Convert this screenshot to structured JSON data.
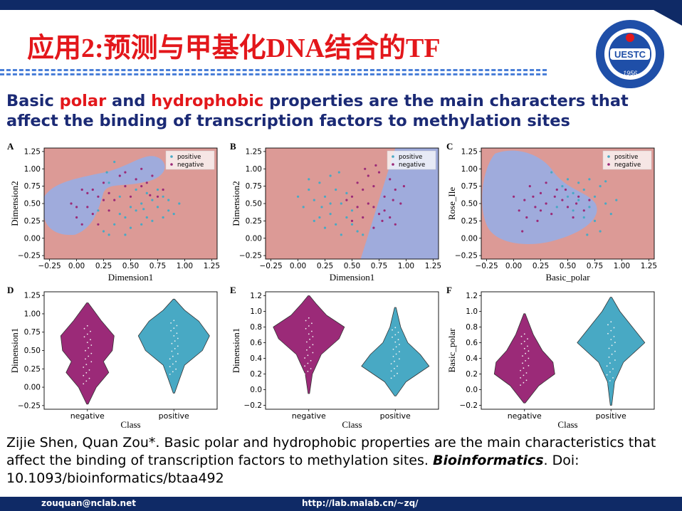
{
  "slide": {
    "title": "应用2:预测与甲基化DNA结合的TF",
    "headline": {
      "p1": "Basic ",
      "p2": "polar",
      "p3": " and ",
      "p4": "hydrophobic",
      "p5": " properties are the main characters that affect the binding of transcription factors to methylation sites"
    },
    "citation": {
      "authors": "Zijie Shen, Quan Zou*. Basic polar and hydrophobic properties are the main characteristics that affect the binding of transcription factors to methylation sites. ",
      "journal": "Bioinformatics",
      "doi": ". Doi: 10.1093/bioinformatics/btaa492"
    },
    "footer": {
      "email": "zouquan@nclab.net",
      "url": "http://lab.malab.cn/~zq/"
    },
    "logo": {
      "text": "UESTC",
      "year": "1956"
    },
    "colors": {
      "title": "#e3171b",
      "headline": "#1b2a75",
      "bar": "#0f2a66",
      "negative": "#9b2a78",
      "positive": "#48a9c4",
      "region_red": "#dc9a96",
      "region_blue": "#9fabdc"
    }
  },
  "chart_data": [
    {
      "panel": "A",
      "type": "scatter",
      "xlabel": "Dimension1",
      "ylabel": "Dimension2",
      "xticks": [
        "−0.25",
        "0.00",
        "0.25",
        "0.50",
        "0.75",
        "1.00",
        "1.25"
      ],
      "yticks": [
        "−0.25",
        "0.00",
        "0.25",
        "0.50",
        "0.75",
        "1.00",
        "1.25"
      ],
      "xlim": [
        -0.3,
        1.3
      ],
      "ylim": [
        -0.3,
        1.3
      ],
      "legend": [
        "positive",
        "negative"
      ],
      "legend_position": "top-right",
      "series": [
        {
          "name": "positive",
          "points": [
            [
              0.2,
              0.4
            ],
            [
              0.25,
              0.1
            ],
            [
              0.3,
              0.05
            ],
            [
              0.35,
              0.2
            ],
            [
              0.4,
              0.35
            ],
            [
              0.45,
              0.3
            ],
            [
              0.5,
              0.45
            ],
            [
              0.55,
              0.4
            ],
            [
              0.6,
              0.5
            ],
            [
              0.65,
              0.3
            ],
            [
              0.7,
              0.55
            ],
            [
              0.75,
              0.45
            ],
            [
              0.8,
              0.6
            ],
            [
              0.85,
              0.4
            ],
            [
              0.9,
              0.35
            ],
            [
              0.6,
              0.2
            ],
            [
              0.5,
              0.15
            ],
            [
              0.7,
              0.25
            ],
            [
              0.8,
              0.3
            ],
            [
              0.95,
              0.5
            ],
            [
              0.4,
              0.6
            ],
            [
              0.3,
              0.8
            ],
            [
              0.35,
              1.1
            ],
            [
              0.28,
              0.95
            ],
            [
              0.55,
              0.7
            ],
            [
              0.65,
              0.65
            ],
            [
              0.75,
              0.7
            ],
            [
              0.85,
              0.55
            ],
            [
              0.45,
              0.05
            ],
            [
              0.62,
              0.42
            ]
          ]
        },
        {
          "name": "negative",
          "points": [
            [
              -0.05,
              0.5
            ],
            [
              0.0,
              0.3
            ],
            [
              0.05,
              0.2
            ],
            [
              0.1,
              0.45
            ],
            [
              0.15,
              0.7
            ],
            [
              0.2,
              0.6
            ],
            [
              0.25,
              0.8
            ],
            [
              0.3,
              0.65
            ],
            [
              0.35,
              0.55
            ],
            [
              0.4,
              0.9
            ],
            [
              0.45,
              0.75
            ],
            [
              0.5,
              0.6
            ],
            [
              0.55,
              0.85
            ],
            [
              0.6,
              1.0
            ],
            [
              0.65,
              0.8
            ],
            [
              0.7,
              0.9
            ],
            [
              0.75,
              0.6
            ],
            [
              0.8,
              0.7
            ],
            [
              0.15,
              0.35
            ],
            [
              0.2,
              0.2
            ],
            [
              0.1,
              0.65
            ],
            [
              0.05,
              0.7
            ],
            [
              0.0,
              0.45
            ],
            [
              0.3,
              0.4
            ],
            [
              0.25,
              0.55
            ],
            [
              0.6,
              0.75
            ],
            [
              0.68,
              0.62
            ],
            [
              0.45,
              0.95
            ]
          ]
        }
      ]
    },
    {
      "panel": "B",
      "type": "scatter",
      "xlabel": "Dimension1",
      "ylabel": "Dimension2",
      "xticks": [
        "−0.25",
        "0.00",
        "0.25",
        "0.50",
        "0.75",
        "1.00",
        "1.25"
      ],
      "yticks": [
        "−0.25",
        "0.00",
        "0.25",
        "0.50",
        "0.75",
        "1.00",
        "1.25"
      ],
      "xlim": [
        -0.3,
        1.3
      ],
      "ylim": [
        -0.3,
        1.3
      ],
      "legend": [
        "positive",
        "negative"
      ],
      "legend_position": "top-right",
      "series": [
        {
          "name": "positive",
          "points": [
            [
              0.0,
              0.6
            ],
            [
              0.05,
              0.45
            ],
            [
              0.1,
              0.7
            ],
            [
              0.15,
              0.55
            ],
            [
              0.2,
              0.8
            ],
            [
              0.25,
              0.6
            ],
            [
              0.3,
              0.9
            ],
            [
              0.35,
              0.7
            ],
            [
              0.4,
              0.5
            ],
            [
              0.45,
              0.3
            ],
            [
              0.5,
              0.2
            ],
            [
              0.55,
              0.1
            ],
            [
              0.6,
              0.05
            ],
            [
              0.3,
              0.35
            ],
            [
              0.2,
              0.3
            ],
            [
              0.25,
              0.15
            ],
            [
              0.35,
              0.2
            ],
            [
              0.4,
              0.05
            ],
            [
              0.15,
              0.25
            ],
            [
              0.5,
              0.4
            ],
            [
              0.1,
              0.85
            ],
            [
              0.38,
              0.95
            ],
            [
              0.45,
              0.65
            ],
            [
              0.3,
              0.5
            ],
            [
              0.22,
              0.45
            ]
          ]
        },
        {
          "name": "negative",
          "points": [
            [
              0.5,
              0.6
            ],
            [
              0.55,
              0.8
            ],
            [
              0.6,
              0.7
            ],
            [
              0.65,
              0.9
            ],
            [
              0.7,
              0.75
            ],
            [
              0.75,
              0.95
            ],
            [
              0.8,
              0.6
            ],
            [
              0.85,
              0.85
            ],
            [
              0.9,
              0.7
            ],
            [
              0.95,
              0.5
            ],
            [
              0.7,
              0.45
            ],
            [
              0.75,
              0.35
            ],
            [
              0.8,
              0.4
            ],
            [
              0.65,
              0.5
            ],
            [
              0.6,
              0.3
            ],
            [
              0.55,
              0.45
            ],
            [
              0.85,
              0.3
            ],
            [
              0.9,
              0.2
            ],
            [
              0.7,
              0.15
            ],
            [
              0.78,
              0.25
            ],
            [
              0.62,
              1.0
            ],
            [
              0.72,
              1.05
            ],
            [
              0.88,
              0.55
            ],
            [
              0.5,
              0.25
            ],
            [
              0.45,
              0.55
            ],
            [
              0.98,
              0.75
            ]
          ]
        }
      ]
    },
    {
      "panel": "C",
      "type": "scatter",
      "xlabel": "Basic_polar",
      "ylabel": "Rose_Ile",
      "xticks": [
        "−0.25",
        "0.00",
        "0.25",
        "0.50",
        "0.75",
        "1.00",
        "1.25"
      ],
      "yticks": [
        "−0.25",
        "0.00",
        "0.25",
        "0.50",
        "0.75",
        "1.00",
        "1.25"
      ],
      "xlim": [
        -0.3,
        1.3
      ],
      "ylim": [
        -0.3,
        1.3
      ],
      "legend": [
        "positive",
        "negative"
      ],
      "legend_position": "top-right",
      "series": [
        {
          "name": "positive",
          "points": [
            [
              0.35,
              0.95
            ],
            [
              0.45,
              0.75
            ],
            [
              0.5,
              0.85
            ],
            [
              0.55,
              0.65
            ],
            [
              0.6,
              0.8
            ],
            [
              0.65,
              0.7
            ],
            [
              0.7,
              0.85
            ],
            [
              0.75,
              0.6
            ],
            [
              0.8,
              0.75
            ],
            [
              0.85,
              0.5
            ],
            [
              0.9,
              0.35
            ],
            [
              0.7,
              0.45
            ],
            [
              0.6,
              0.55
            ],
            [
              0.55,
              0.4
            ],
            [
              0.65,
              0.3
            ],
            [
              0.75,
              0.25
            ],
            [
              0.8,
              0.1
            ],
            [
              0.68,
              0.05
            ],
            [
              0.85,
              0.82
            ],
            [
              0.5,
              0.6
            ],
            [
              0.4,
              0.45
            ],
            [
              0.95,
              0.55
            ]
          ]
        },
        {
          "name": "negative",
          "points": [
            [
              0.0,
              0.6
            ],
            [
              0.05,
              0.4
            ],
            [
              0.1,
              0.55
            ],
            [
              0.15,
              0.75
            ],
            [
              0.2,
              0.45
            ],
            [
              0.25,
              0.65
            ],
            [
              0.3,
              0.5
            ],
            [
              0.35,
              0.35
            ],
            [
              0.4,
              0.7
            ],
            [
              0.45,
              0.55
            ],
            [
              0.5,
              0.45
            ],
            [
              0.55,
              0.3
            ],
            [
              0.6,
              0.6
            ],
            [
              0.12,
              0.3
            ],
            [
              0.22,
              0.25
            ],
            [
              0.3,
              0.8
            ],
            [
              0.38,
              0.6
            ],
            [
              0.48,
              0.7
            ],
            [
              0.08,
              0.1
            ],
            [
              0.25,
              0.4
            ],
            [
              0.58,
              0.5
            ],
            [
              0.65,
              0.4
            ],
            [
              0.7,
              0.55
            ],
            [
              0.18,
              0.6
            ]
          ]
        }
      ]
    },
    {
      "panel": "D",
      "type": "violin",
      "xlabel": "Class",
      "ylabel": "Dimension1",
      "categories": [
        "negative",
        "positive"
      ],
      "yticks": [
        "−0.25",
        "0.00",
        "0.25",
        "0.50",
        "0.75",
        "1.00",
        "1.25"
      ],
      "ylim": [
        -0.3,
        1.3
      ],
      "violins": [
        {
          "category": "negative",
          "min": -0.23,
          "max": 1.15,
          "profile": [
            [
              -0.23,
              0.02
            ],
            [
              0.0,
              0.25
            ],
            [
              0.2,
              0.6
            ],
            [
              0.35,
              0.45
            ],
            [
              0.5,
              0.7
            ],
            [
              0.7,
              0.75
            ],
            [
              0.9,
              0.4
            ],
            [
              1.15,
              0.02
            ]
          ]
        },
        {
          "category": "positive",
          "min": -0.08,
          "max": 1.2,
          "profile": [
            [
              -0.08,
              0.02
            ],
            [
              0.1,
              0.15
            ],
            [
              0.3,
              0.3
            ],
            [
              0.5,
              0.8
            ],
            [
              0.7,
              1.0
            ],
            [
              0.9,
              0.7
            ],
            [
              1.05,
              0.3
            ],
            [
              1.2,
              0.02
            ]
          ]
        }
      ]
    },
    {
      "panel": "E",
      "type": "violin",
      "xlabel": "Class",
      "ylabel": "Dimension1",
      "categories": [
        "negative",
        "positive"
      ],
      "yticks": [
        "−0.2",
        "0.0",
        "0.2",
        "0.4",
        "0.6",
        "0.8",
        "1.0",
        "1.2"
      ],
      "ylim": [
        -0.25,
        1.25
      ],
      "violins": [
        {
          "category": "negative",
          "min": -0.05,
          "max": 1.2,
          "profile": [
            [
              -0.05,
              0.02
            ],
            [
              0.2,
              0.1
            ],
            [
              0.45,
              0.35
            ],
            [
              0.65,
              0.85
            ],
            [
              0.8,
              1.0
            ],
            [
              0.95,
              0.5
            ],
            [
              1.1,
              0.2
            ],
            [
              1.2,
              0.02
            ]
          ]
        },
        {
          "category": "positive",
          "min": -0.08,
          "max": 1.05,
          "profile": [
            [
              -0.08,
              0.02
            ],
            [
              0.1,
              0.3
            ],
            [
              0.3,
              0.95
            ],
            [
              0.45,
              0.7
            ],
            [
              0.6,
              0.35
            ],
            [
              0.8,
              0.15
            ],
            [
              1.05,
              0.02
            ]
          ]
        }
      ]
    },
    {
      "panel": "F",
      "type": "violin",
      "xlabel": "Class",
      "ylabel": "Basic_polar",
      "categories": [
        "negative",
        "positive"
      ],
      "yticks": [
        "−0.2",
        "0.0",
        "0.2",
        "0.4",
        "0.6",
        "0.8",
        "1.0",
        "1.2"
      ],
      "ylim": [
        -0.25,
        1.25
      ],
      "violins": [
        {
          "category": "negative",
          "min": -0.17,
          "max": 0.97,
          "profile": [
            [
              -0.17,
              0.02
            ],
            [
              0.05,
              0.4
            ],
            [
              0.2,
              0.85
            ],
            [
              0.35,
              0.8
            ],
            [
              0.5,
              0.5
            ],
            [
              0.7,
              0.25
            ],
            [
              0.97,
              0.02
            ]
          ]
        },
        {
          "category": "positive",
          "min": -0.2,
          "max": 1.18,
          "profile": [
            [
              -0.2,
              0.02
            ],
            [
              0.1,
              0.1
            ],
            [
              0.35,
              0.35
            ],
            [
              0.6,
              0.95
            ],
            [
              0.8,
              0.6
            ],
            [
              1.0,
              0.25
            ],
            [
              1.18,
              0.02
            ]
          ]
        }
      ]
    }
  ]
}
